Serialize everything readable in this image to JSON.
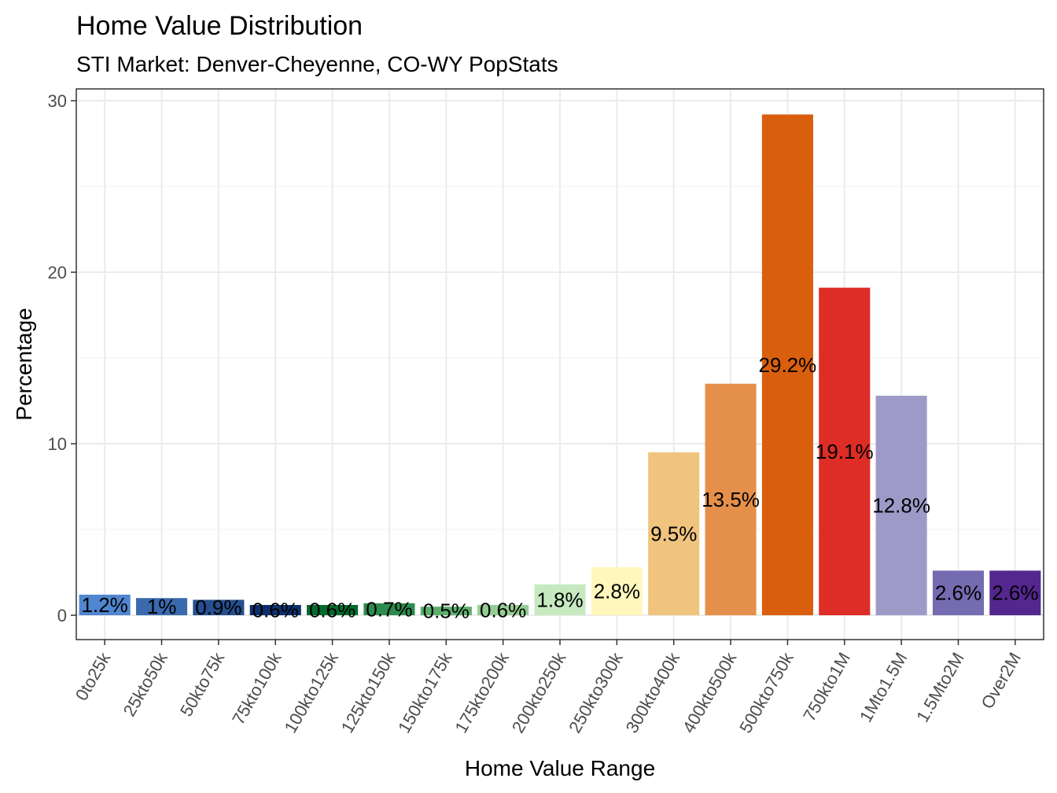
{
  "chart_data": {
    "type": "bar",
    "title": "Home Value Distribution",
    "subtitle": "STI Market: Denver-Cheyenne, CO-WY PopStats",
    "xlabel": "Home Value Range",
    "ylabel": "Percentage",
    "ylim": [
      -1.42,
      30.69
    ],
    "yticks": [
      0,
      10,
      20,
      30
    ],
    "grid": true,
    "legend": "none",
    "categories": [
      "0to25k",
      "25kto50k",
      "50kto75k",
      "75kto100k",
      "100kto125k",
      "125kto150k",
      "150kto175k",
      "175kto200k",
      "200kto250k",
      "250kto300k",
      "300kto400k",
      "400kto500k",
      "500kto750k",
      "750kto1M",
      "1Mto1.5M",
      "1.5Mto2M",
      "Over2M"
    ],
    "values": [
      1.2,
      1.0,
      0.9,
      0.6,
      0.6,
      0.7,
      0.5,
      0.6,
      1.8,
      2.8,
      9.5,
      13.5,
      29.2,
      19.1,
      12.8,
      2.6,
      2.6
    ],
    "labels": [
      "1.2%",
      "1%",
      "0.9%",
      "0.6%",
      "0.6%",
      "0.7%",
      "0.5%",
      "0.6%",
      "1.8%",
      "2.8%",
      "9.5%",
      "13.5%",
      "29.2%",
      "19.1%",
      "12.8%",
      "2.6%",
      "2.6%"
    ],
    "colors": [
      "#4f86cf",
      "#3a6aad",
      "#254f8f",
      "#0d2f6b",
      "#006b2c",
      "#2e8b4f",
      "#5cae6c",
      "#94cd93",
      "#c7e9c0",
      "#fff7bc",
      "#f0c47e",
      "#e5904a",
      "#d95f0e",
      "#de2d26",
      "#9e9ac8",
      "#756bb1",
      "#54278f"
    ]
  }
}
